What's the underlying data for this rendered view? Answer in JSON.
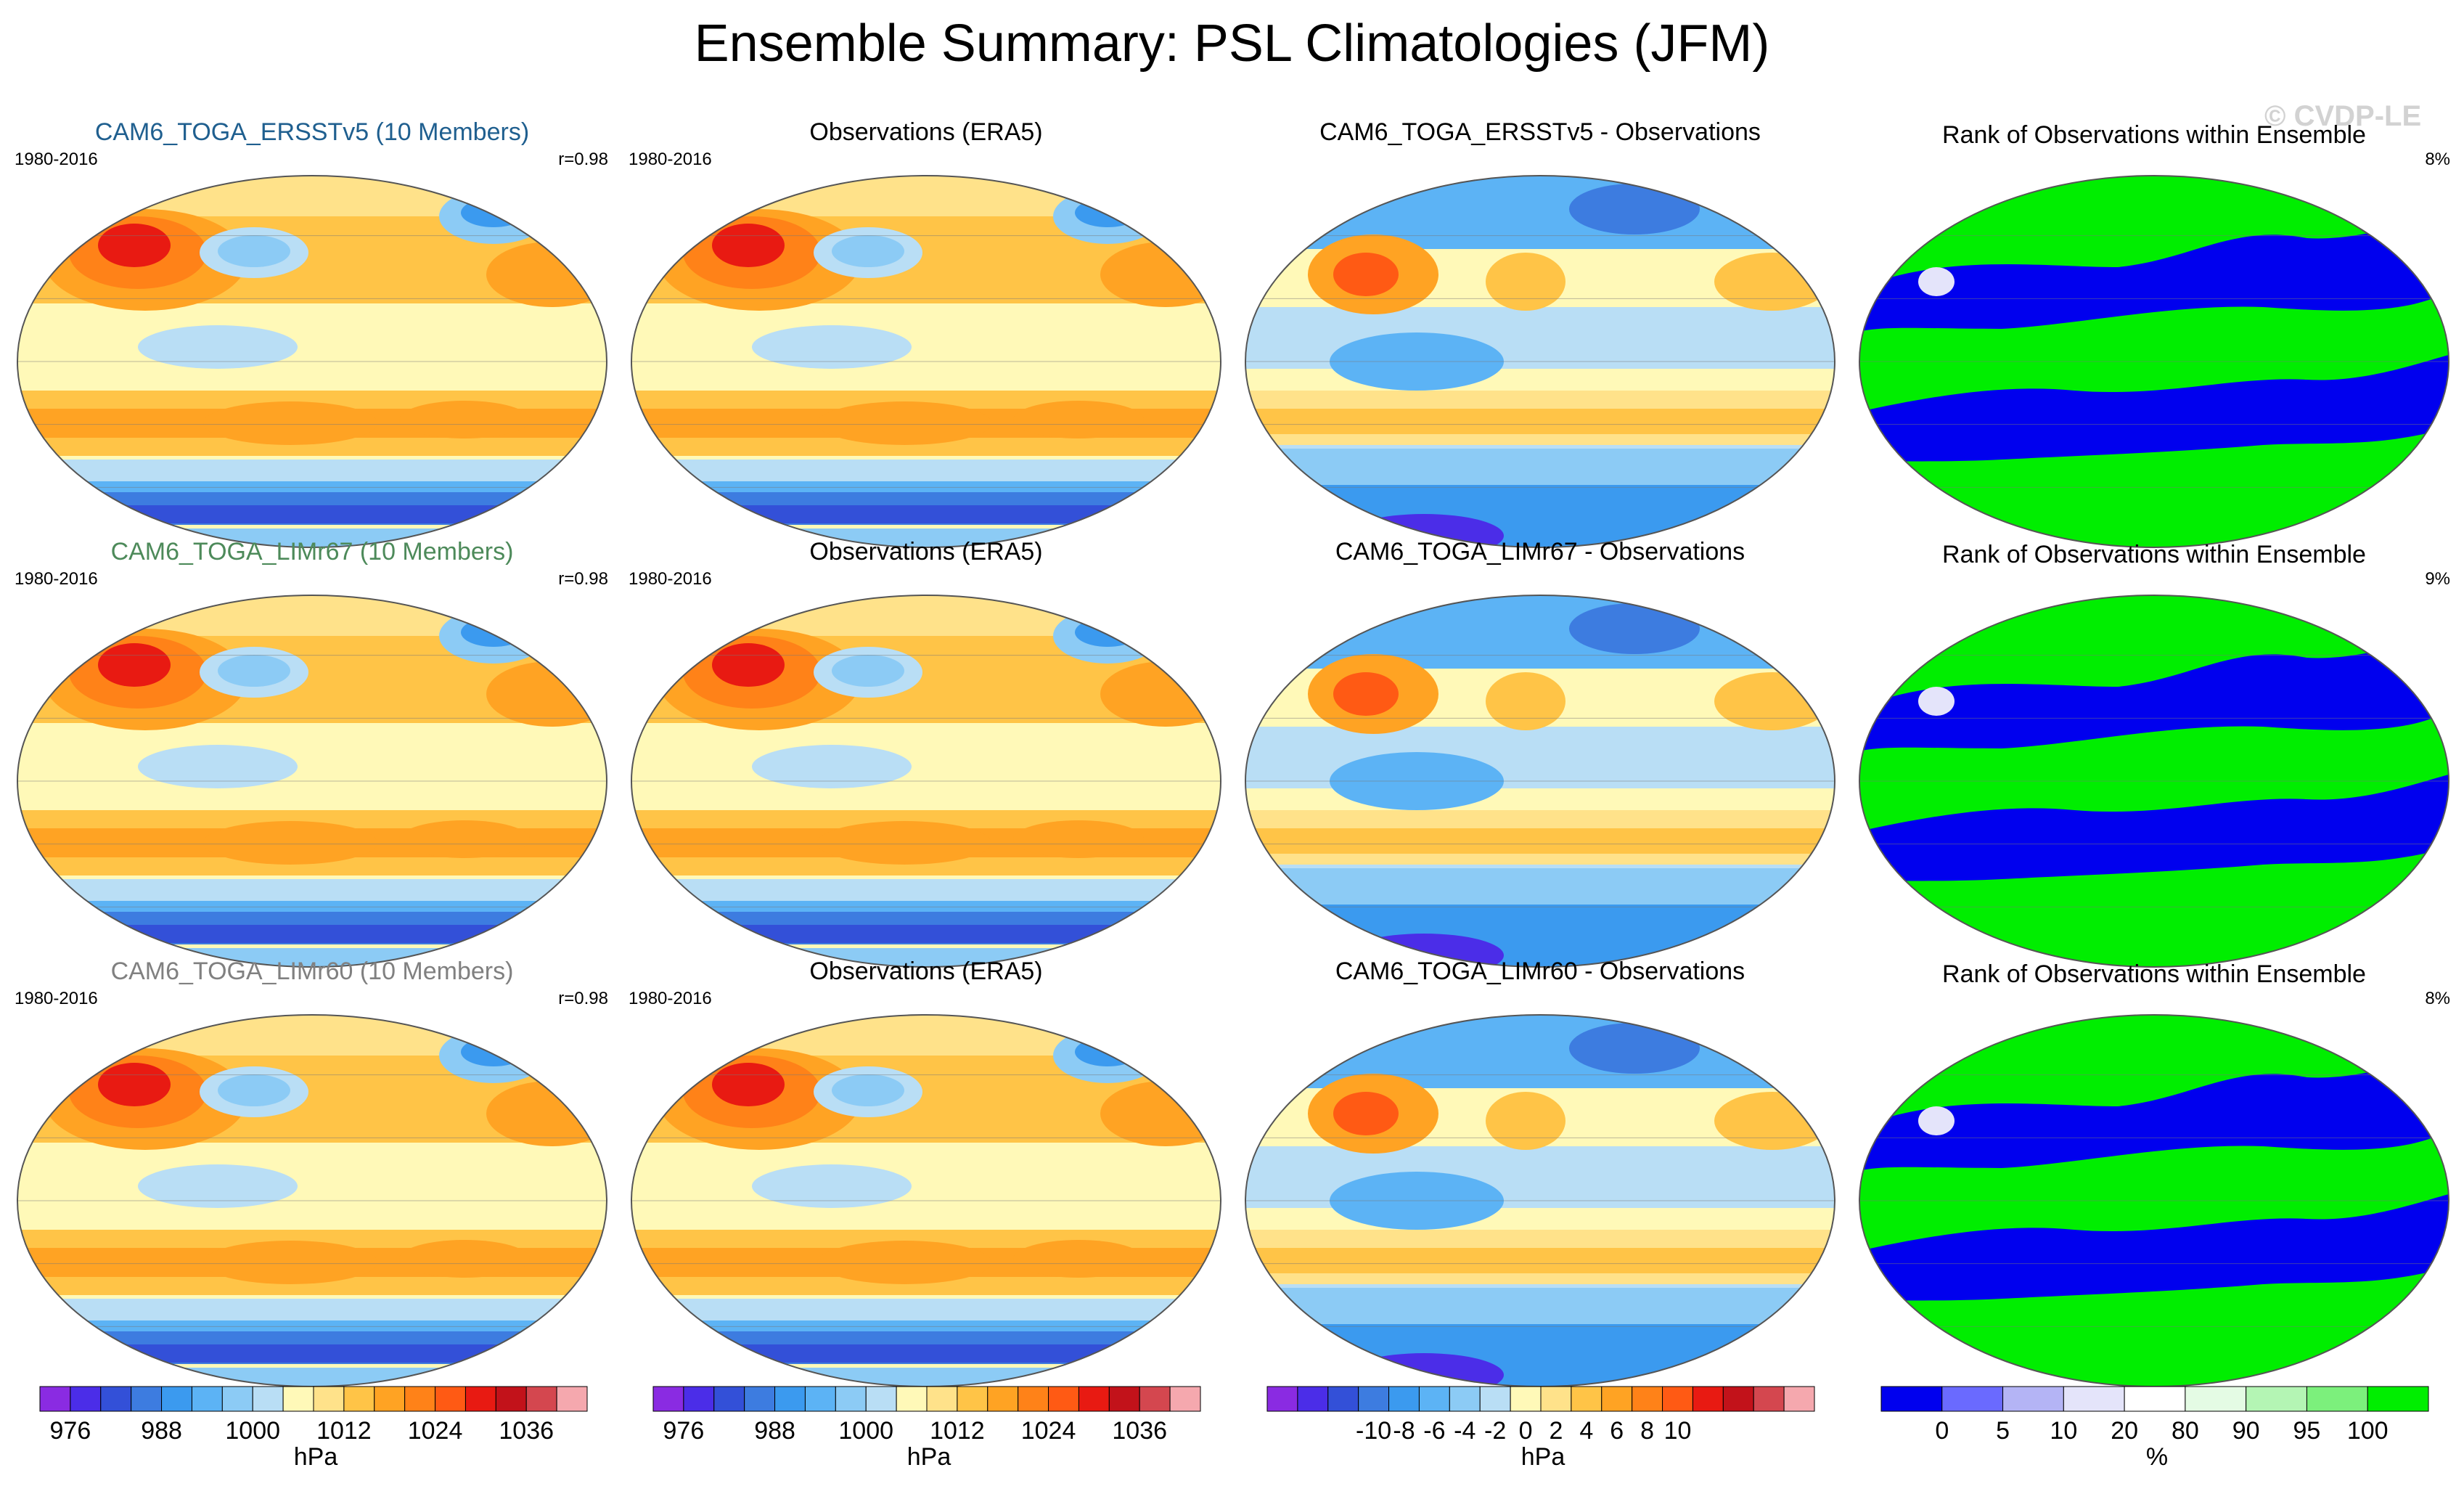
{
  "title": "Ensemble Summary: PSL Climatologies (JFM)",
  "watermark": "© CVDP-LE",
  "rows": [
    {
      "ensemble_title": "CAM6_TOGA_ERSSTv5 (10 Members)",
      "ensemble_color": "#1f5f8f",
      "years_ens": "1980-2016",
      "r": "r=0.98",
      "obs_title": "Observations (ERA5)",
      "years_obs": "1980-2016",
      "diff_title": "CAM6_TOGA_ERSSTv5 - Observations",
      "rank_title": "Rank of Observations within Ensemble",
      "rank_pct": "8%"
    },
    {
      "ensemble_title": "CAM6_TOGA_LIMr67 (10 Members)",
      "ensemble_color": "#4d8a5a",
      "years_ens": "1980-2016",
      "r": "r=0.98",
      "obs_title": "Observations (ERA5)",
      "years_obs": "1980-2016",
      "diff_title": "CAM6_TOGA_LIMr67 - Observations",
      "rank_title": "Rank of Observations within Ensemble",
      "rank_pct": "9%"
    },
    {
      "ensemble_title": "CAM6_TOGA_LIMr60 (10 Members)",
      "ensemble_color": "#808080",
      "years_ens": "1980-2016",
      "r": "r=0.98",
      "obs_title": "Observations (ERA5)",
      "years_obs": "1980-2016",
      "diff_title": "CAM6_TOGA_LIMr60 - Observations",
      "rank_title": "Rank of Observations within Ensemble",
      "rank_pct": "8%"
    }
  ],
  "chart_data": {
    "type": "heatmap",
    "projection": "Robinson, Pacific-centered",
    "colorbars": [
      {
        "unit": "hPa",
        "ticks": [
          "976",
          "988",
          "1000",
          "1012",
          "1024",
          "1036"
        ],
        "colors": [
          "#8a2be2",
          "#4b2de8",
          "#3350d8",
          "#3d7ce0",
          "#3b9aef",
          "#5cb3f5",
          "#8ccbf5",
          "#b9def5",
          "#fff9b8",
          "#ffe28a",
          "#ffc447",
          "#ffa323",
          "#ff8218",
          "#ff5a14",
          "#e81a12",
          "#c2121a",
          "#d4474f",
          "#f5a8ae"
        ]
      },
      {
        "unit": "hPa",
        "ticks": [
          "976",
          "988",
          "1000",
          "1012",
          "1024",
          "1036"
        ],
        "colors": [
          "#8a2be2",
          "#4b2de8",
          "#3350d8",
          "#3d7ce0",
          "#3b9aef",
          "#5cb3f5",
          "#8ccbf5",
          "#b9def5",
          "#fff9b8",
          "#ffe28a",
          "#ffc447",
          "#ffa323",
          "#ff8218",
          "#ff5a14",
          "#e81a12",
          "#c2121a",
          "#d4474f",
          "#f5a8ae"
        ]
      },
      {
        "unit": "hPa",
        "ticks": [
          "-10",
          "-8",
          "-6",
          "-4",
          "-2",
          "0",
          "2",
          "4",
          "6",
          "8",
          "10"
        ],
        "colors": [
          "#8a2be2",
          "#4b2de8",
          "#3350d8",
          "#3d7ce0",
          "#3b9aef",
          "#5cb3f5",
          "#8ccbf5",
          "#b9def5",
          "#fff9b8",
          "#ffe28a",
          "#ffc447",
          "#ffa323",
          "#ff8218",
          "#ff5a14",
          "#e81a12",
          "#c2121a",
          "#d4474f",
          "#f5a8ae"
        ]
      },
      {
        "unit": "%",
        "ticks": [
          "0",
          "5",
          "10",
          "20",
          "80",
          "90",
          "95",
          "100"
        ],
        "colors": [
          "#0000ee",
          "#6a6aff",
          "#b4b4f5",
          "#e4e4fa",
          "#ffffff",
          "#e4fbe4",
          "#b4f5b4",
          "#7cf07c",
          "#00ee00"
        ]
      }
    ]
  }
}
